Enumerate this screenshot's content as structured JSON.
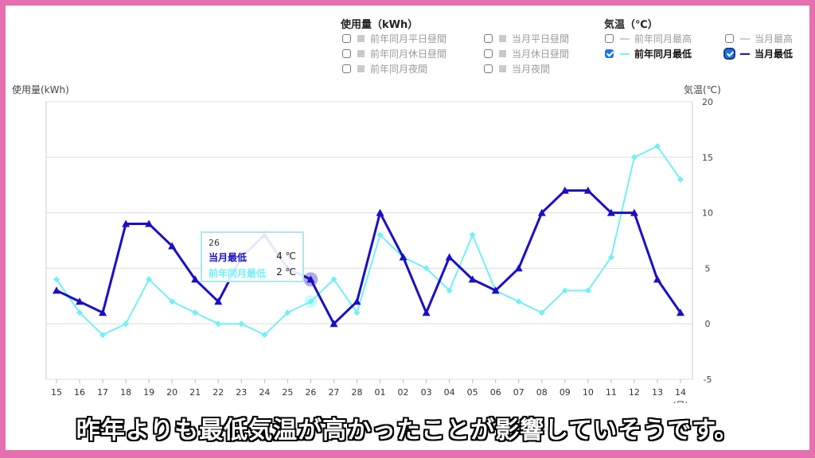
{
  "legend": {
    "usage_title": "使用量（kWh）",
    "temp_title": "気温（℃）",
    "usage_items": [
      {
        "label": "前年同月平日昼間",
        "checked": false
      },
      {
        "label": "前年同月休日昼間",
        "checked": false
      },
      {
        "label": "前年同月夜間",
        "checked": false
      },
      {
        "label": "当月平日昼間",
        "checked": false
      },
      {
        "label": "当月休日昼間",
        "checked": false
      },
      {
        "label": "当月夜間",
        "checked": false
      }
    ],
    "temp_items": [
      {
        "label": "前年同月最高",
        "checked": false
      },
      {
        "label": "前年同月最低",
        "checked": true
      },
      {
        "label": "当月最高",
        "checked": false
      },
      {
        "label": "当月最低",
        "checked": true
      }
    ]
  },
  "colors": {
    "current_min": "#1a0fc4",
    "prev_min": "#72f0f8",
    "grid": "#dddddd"
  },
  "chart_data": {
    "type": "line",
    "ylabel_left": "使用量(kWh)",
    "ylabel_right": "気温(℃)",
    "xlabel": "(日)",
    "categories": [
      "15",
      "16",
      "17",
      "18",
      "19",
      "20",
      "21",
      "22",
      "23",
      "24",
      "25",
      "26",
      "27",
      "28",
      "01",
      "02",
      "03",
      "04",
      "05",
      "06",
      "07",
      "08",
      "09",
      "10",
      "11",
      "12",
      "13",
      "14"
    ],
    "ylim": [
      -5,
      20
    ],
    "yticks": [
      -5,
      0,
      5,
      10,
      15,
      20
    ],
    "series": [
      {
        "name": "当月最低",
        "color": "#1a0fc4",
        "marker": "triangle",
        "values": [
          3,
          2,
          1,
          9,
          9,
          7,
          4,
          2,
          6,
          8,
          5,
          4,
          0,
          2,
          10,
          6,
          1,
          6,
          4,
          3,
          5,
          10,
          12,
          12,
          10,
          10,
          4,
          1
        ]
      },
      {
        "name": "前年同月最低",
        "color": "#72f0f8",
        "marker": "diamond",
        "values": [
          4,
          1,
          -1,
          0,
          4,
          2,
          1,
          0,
          0,
          -1,
          1,
          2,
          4,
          1,
          8,
          6,
          5,
          3,
          8,
          3,
          2,
          1,
          3,
          3,
          6,
          15,
          16,
          13
        ]
      }
    ]
  },
  "tooltip": {
    "day": "26",
    "rows": [
      {
        "label": "当月最低",
        "value": "4 ℃",
        "color": "#1a0fc4"
      },
      {
        "label": "前年同月最低",
        "value": "2 ℃",
        "color": "#72f0f8"
      }
    ]
  },
  "caption": "昨年よりも最低気温が高かったことが影響していそうです。"
}
